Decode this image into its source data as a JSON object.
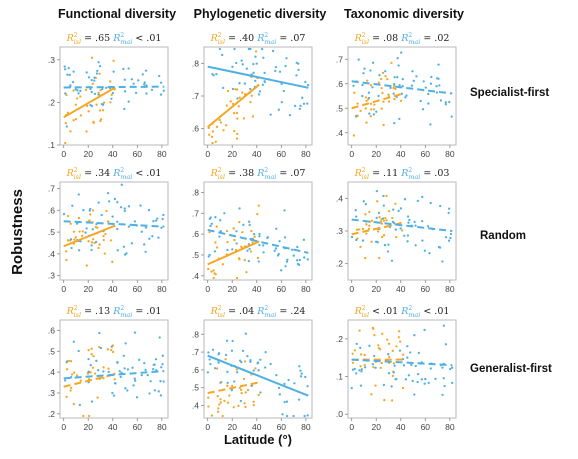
{
  "colors": {
    "isl": "#f5a623",
    "mai": "#4fb0e3",
    "frame": "#b9b9b9"
  },
  "column_titles": [
    "Functional diversity",
    "Phylogenetic diversity",
    "Taxonomic diversity"
  ],
  "row_labels": [
    "Specialist-first",
    "Random",
    "Generalist-first"
  ],
  "ylabel": "Robustness",
  "xlabel": "Latitude (°)",
  "r2_labels": {
    "isl": "isl",
    "mai": "mai"
  },
  "chart_data": [
    {
      "type": "scatter",
      "row": 0,
      "col": 0,
      "xlim": [
        -3,
        85
      ],
      "ylim": [
        0.1,
        0.33
      ],
      "xticks": [
        0,
        20,
        40,
        60,
        80
      ],
      "yticks": [
        0.1,
        0.2,
        0.3
      ],
      "ytick_labels": [
        ".1",
        ".2",
        ".3"
      ],
      "r2": {
        "isl": ".65",
        "isl_op": "=",
        "mai": ".01",
        "mai_op": "<"
      },
      "series": [
        {
          "name": "isl",
          "fit": {
            "x": [
              0,
              42
            ],
            "y": [
              0.165,
              0.235
            ]
          },
          "dashed": false
        },
        {
          "name": "mai",
          "fit": {
            "x": [
              0,
              82
            ],
            "y": [
              0.235,
              0.237
            ]
          },
          "dashed": true
        }
      ]
    },
    {
      "type": "scatter",
      "row": 0,
      "col": 1,
      "xlim": [
        -3,
        85
      ],
      "ylim": [
        0.55,
        0.85
      ],
      "xticks": [
        0,
        20,
        40,
        60,
        80
      ],
      "yticks": [
        0.6,
        0.7,
        0.8
      ],
      "ytick_labels": [
        ".6",
        ".7",
        ".8"
      ],
      "r2": {
        "isl": ".40",
        "isl_op": "=",
        "mai": ".07",
        "mai_op": "="
      },
      "series": [
        {
          "name": "isl",
          "fit": {
            "x": [
              0,
              42
            ],
            "y": [
              0.605,
              0.735
            ]
          },
          "dashed": false
        },
        {
          "name": "mai",
          "fit": {
            "x": [
              0,
              82
            ],
            "y": [
              0.79,
              0.725
            ]
          },
          "dashed": false
        }
      ]
    },
    {
      "type": "scatter",
      "row": 0,
      "col": 2,
      "xlim": [
        -3,
        85
      ],
      "ylim": [
        0.35,
        0.75
      ],
      "xticks": [
        0,
        20,
        40,
        60,
        80
      ],
      "yticks": [
        0.4,
        0.5,
        0.6,
        0.7
      ],
      "ytick_labels": [
        ".4",
        ".5",
        ".6",
        ".7"
      ],
      "r2": {
        "isl": ".08",
        "isl_op": "=",
        "mai": ".02",
        "mai_op": "="
      },
      "series": [
        {
          "name": "isl",
          "fit": {
            "x": [
              0,
              42
            ],
            "y": [
              0.5,
              0.56
            ]
          },
          "dashed": true
        },
        {
          "name": "mai",
          "fit": {
            "x": [
              0,
              82
            ],
            "y": [
              0.61,
              0.56
            ]
          },
          "dashed": true
        }
      ]
    },
    {
      "type": "scatter",
      "row": 1,
      "col": 0,
      "xlim": [
        -3,
        85
      ],
      "ylim": [
        0.28,
        0.73
      ],
      "xticks": [
        0,
        20,
        40,
        60,
        80
      ],
      "yticks": [
        0.3,
        0.4,
        0.5,
        0.6,
        0.7
      ],
      "ytick_labels": [
        ".3",
        ".4",
        ".5",
        ".6",
        ".7"
      ],
      "r2": {
        "isl": ".34",
        "isl_op": "=",
        "mai": ".01",
        "mai_op": "<"
      },
      "series": [
        {
          "name": "isl",
          "fit": {
            "x": [
              0,
              42
            ],
            "y": [
              0.435,
              0.53
            ]
          },
          "dashed": false
        },
        {
          "name": "mai",
          "fit": {
            "x": [
              0,
              82
            ],
            "y": [
              0.55,
              0.525
            ]
          },
          "dashed": true
        }
      ]
    },
    {
      "type": "scatter",
      "row": 1,
      "col": 1,
      "xlim": [
        -3,
        85
      ],
      "ylim": [
        0.38,
        0.85
      ],
      "xticks": [
        0,
        20,
        40,
        60,
        80
      ],
      "yticks": [
        0.4,
        0.5,
        0.6,
        0.7,
        0.8
      ],
      "ytick_labels": [
        ".4",
        ".5",
        ".6",
        ".7",
        ".8"
      ],
      "r2": {
        "isl": ".38",
        "isl_op": "=",
        "mai": ".07",
        "mai_op": "="
      },
      "series": [
        {
          "name": "isl",
          "fit": {
            "x": [
              0,
              42
            ],
            "y": [
              0.455,
              0.565
            ]
          },
          "dashed": false
        },
        {
          "name": "mai",
          "fit": {
            "x": [
              0,
              82
            ],
            "y": [
              0.62,
              0.51
            ]
          },
          "dashed": true
        }
      ]
    },
    {
      "type": "scatter",
      "row": 1,
      "col": 2,
      "xlim": [
        -3,
        85
      ],
      "ylim": [
        0.15,
        0.45
      ],
      "xticks": [
        0,
        20,
        40,
        60,
        80
      ],
      "yticks": [
        0.2,
        0.3,
        0.4
      ],
      "ytick_labels": [
        ".2",
        ".3",
        ".4"
      ],
      "r2": {
        "isl": ".11",
        "isl_op": "=",
        "mai": ".03",
        "mai_op": "="
      },
      "series": [
        {
          "name": "isl",
          "fit": {
            "x": [
              0,
              42
            ],
            "y": [
              0.29,
              0.325
            ]
          },
          "dashed": true
        },
        {
          "name": "mai",
          "fit": {
            "x": [
              0,
              82
            ],
            "y": [
              0.335,
              0.3
            ]
          },
          "dashed": true
        }
      ]
    },
    {
      "type": "scatter",
      "row": 2,
      "col": 0,
      "xlim": [
        -3,
        85
      ],
      "ylim": [
        0.18,
        0.65
      ],
      "xticks": [
        0,
        20,
        40,
        60,
        80
      ],
      "yticks": [
        0.2,
        0.3,
        0.4,
        0.5,
        0.6
      ],
      "ytick_labels": [
        ".2",
        ".3",
        ".4",
        ".5",
        ".6"
      ],
      "r2": {
        "isl": ".13",
        "isl_op": "=",
        "mai": ".01",
        "mai_op": "="
      },
      "series": [
        {
          "name": "isl",
          "fit": {
            "x": [
              0,
              42
            ],
            "y": [
              0.33,
              0.39
            ]
          },
          "dashed": true
        },
        {
          "name": "mai",
          "fit": {
            "x": [
              0,
              82
            ],
            "y": [
              0.37,
              0.405
            ]
          },
          "dashed": true
        }
      ]
    },
    {
      "type": "scatter",
      "row": 2,
      "col": 1,
      "xlim": [
        -3,
        85
      ],
      "ylim": [
        0.33,
        0.88
      ],
      "xticks": [
        0,
        20,
        40,
        60,
        80
      ],
      "yticks": [
        0.4,
        0.5,
        0.6,
        0.7,
        0.8
      ],
      "ytick_labels": [
        ".4",
        ".5",
        ".6",
        ".7",
        ".8"
      ],
      "r2": {
        "isl": ".04",
        "isl_op": "=",
        "mai": ".24",
        "mai_op": "="
      },
      "series": [
        {
          "name": "isl",
          "fit": {
            "x": [
              0,
              42
            ],
            "y": [
              0.47,
              0.53
            ]
          },
          "dashed": true
        },
        {
          "name": "mai",
          "fit": {
            "x": [
              0,
              82
            ],
            "y": [
              0.68,
              0.455
            ]
          },
          "dashed": false
        }
      ]
    },
    {
      "type": "scatter",
      "row": 2,
      "col": 2,
      "xlim": [
        -3,
        85
      ],
      "ylim": [
        -0.01,
        0.25
      ],
      "xticks": [
        0,
        20,
        40,
        60,
        80
      ],
      "yticks": [
        0.0,
        0.1,
        0.2
      ],
      "ytick_labels": [
        ".0",
        ".1",
        ".2"
      ],
      "r2": {
        "isl": ".01",
        "isl_op": "<",
        "mai": ".01",
        "mai_op": "<"
      },
      "series": [
        {
          "name": "isl",
          "fit": {
            "x": [
              0,
              42
            ],
            "y": [
              0.145,
              0.145
            ]
          },
          "dashed": true
        },
        {
          "name": "mai",
          "fit": {
            "x": [
              0,
              82
            ],
            "y": [
              0.145,
              0.13
            ]
          },
          "dashed": true
        }
      ]
    }
  ]
}
